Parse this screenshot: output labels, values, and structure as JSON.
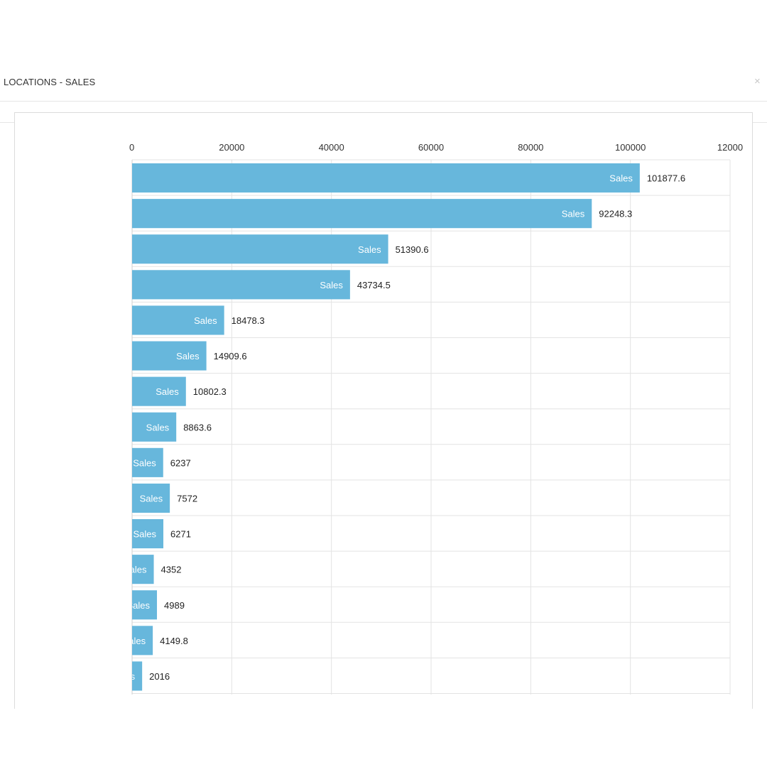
{
  "modal": {
    "title": "LOCATIONS - SALES",
    "close_label": "×"
  },
  "chart_data": {
    "type": "bar",
    "orientation": "horizontal",
    "xlim": [
      0,
      120000
    ],
    "x_ticks": [
      "0",
      "20000",
      "40000",
      "60000",
      "80000",
      "100000",
      "12000"
    ],
    "grid": true,
    "series": [
      {
        "name": "Sales",
        "color": "#67b7dc",
        "values": [
          101877.6,
          92248.3,
          51390.6,
          43734.5,
          18478.3,
          14909.6,
          10802.3,
          8863.6,
          6237,
          7572,
          6271,
          4352,
          4989,
          4149.8,
          2016
        ],
        "value_labels": [
          "101877.6",
          "92248.3",
          "51390.6",
          "43734.5",
          "18478.3",
          "14909.6",
          "10802.3",
          "8863.6",
          "6237",
          "7572",
          "6271",
          "4352",
          "4989",
          "4149.8",
          "2016"
        ]
      }
    ]
  }
}
